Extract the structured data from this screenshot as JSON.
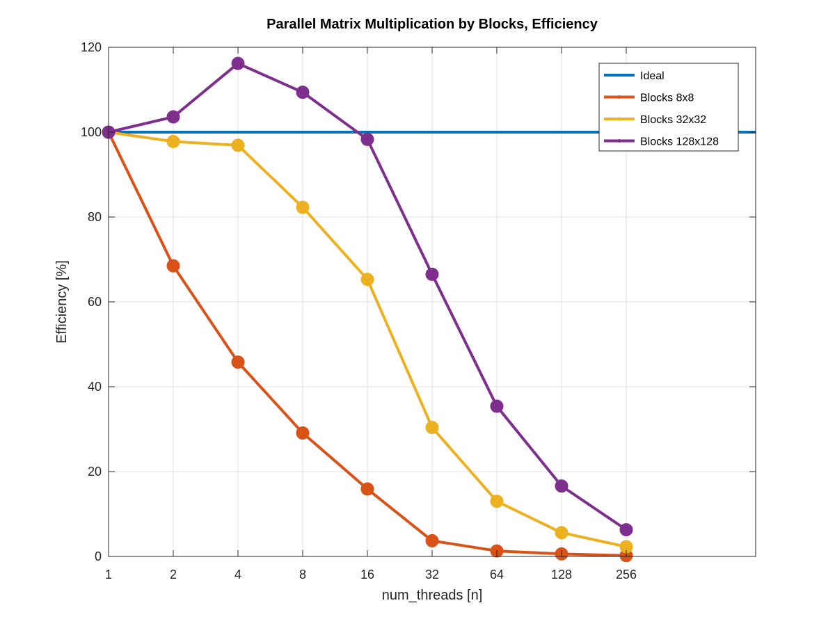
{
  "chart_data": {
    "type": "line",
    "title": "Parallel Matrix Multiplication by Blocks, Efficiency",
    "xlabel": "num_threads [n]",
    "ylabel": "Efficiency [%]",
    "x_scale": "log2",
    "categories": [
      "1",
      "2",
      "4",
      "8",
      "16",
      "32",
      "64",
      "128",
      "256"
    ],
    "x": [
      1,
      2,
      4,
      8,
      16,
      32,
      64,
      128,
      256
    ],
    "xlim": [
      1,
      1024
    ],
    "ylim": [
      0,
      120
    ],
    "yticks": [
      0,
      20,
      40,
      60,
      80,
      100,
      120
    ],
    "grid": true,
    "legend_position": "top-right",
    "series": [
      {
        "name": "Ideal",
        "color": "#0072BD",
        "markers": false,
        "x": [
          1,
          1024
        ],
        "values": [
          100,
          100
        ]
      },
      {
        "name": "Blocks 8x8",
        "color": "#D95319",
        "markers": true,
        "values": [
          100,
          68.5,
          45.8,
          29.1,
          15.9,
          3.7,
          1.3,
          0.6,
          0.2
        ]
      },
      {
        "name": "Blocks 32x32",
        "color": "#EDB120",
        "markers": true,
        "values": [
          100,
          97.8,
          96.9,
          82.3,
          65.3,
          30.4,
          13.0,
          5.6,
          2.3
        ]
      },
      {
        "name": "Blocks 128x128",
        "color": "#7E2F8E",
        "markers": true,
        "values": [
          100,
          103.6,
          116.2,
          109.4,
          98.3,
          66.5,
          35.4,
          16.6,
          6.3
        ]
      }
    ]
  }
}
